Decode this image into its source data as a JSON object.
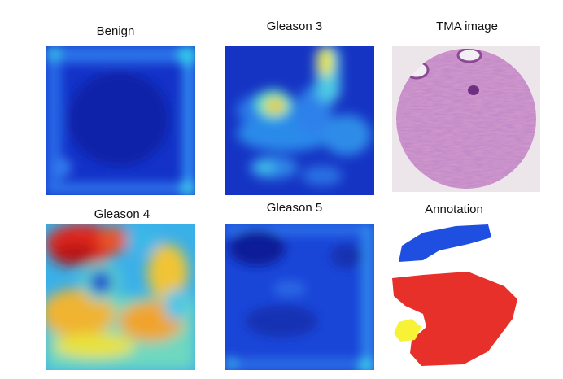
{
  "panels": {
    "benign": {
      "label": "Benign"
    },
    "gleason3": {
      "label": "Gleason 3"
    },
    "tma": {
      "label": "TMA image"
    },
    "gleason4": {
      "label": "Gleason 4"
    },
    "gleason5": {
      "label": "Gleason 5"
    },
    "annotation": {
      "label": "Annotation"
    }
  },
  "colors": {
    "annotation_blue": "#1e4fe0",
    "annotation_red": "#e8302a",
    "annotation_yellow": "#f7f235",
    "tissue_pink": "#c98bc6",
    "tissue_purple": "#7b3f8c"
  }
}
